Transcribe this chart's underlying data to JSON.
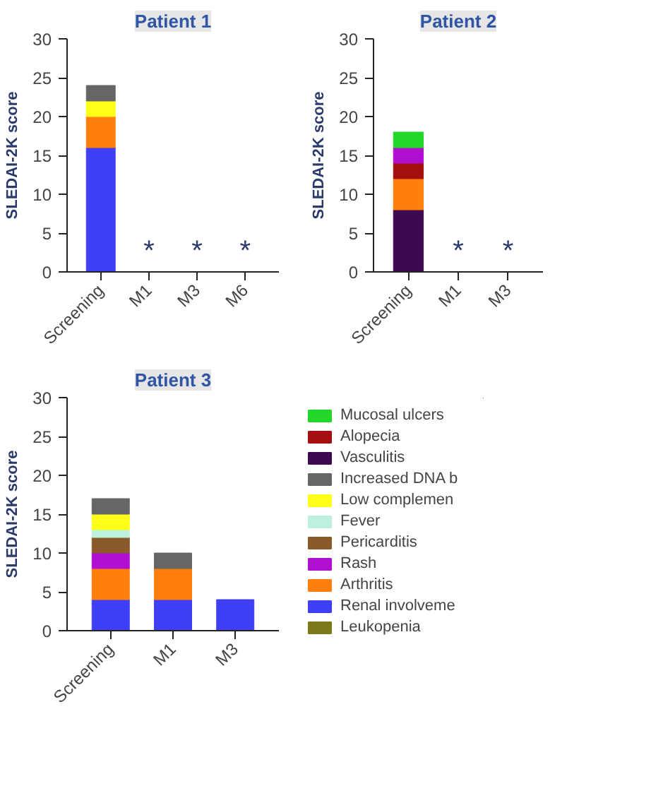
{
  "chart_data": [
    {
      "type": "bar",
      "title": "Patient 1",
      "ylabel": "SLEDAI-2K score",
      "stacked": true,
      "categories": [
        "Screening",
        "M1",
        "M3",
        "M6"
      ],
      "ylim": [
        0,
        30
      ],
      "yticks": [
        0,
        5,
        10,
        15,
        20,
        25,
        30
      ],
      "grid": false,
      "legend": false,
      "series": [
        {
          "color": "#3f3ff5",
          "values": [
            16,
            null,
            null,
            null
          ]
        },
        {
          "color": "#ff7f0e",
          "values": [
            4,
            null,
            null,
            null
          ]
        },
        {
          "color": "#ffff1a",
          "values": [
            2,
            null,
            null,
            null
          ]
        },
        {
          "color": "#666666",
          "values": [
            2,
            null,
            null,
            null
          ]
        }
      ],
      "annotations": [
        "*",
        "*",
        "*"
      ]
    },
    {
      "type": "bar",
      "title": "Patient 2",
      "ylabel": "SLEDAI-2K score",
      "stacked": true,
      "categories": [
        "Screening",
        "M1",
        "M3"
      ],
      "ylim": [
        0,
        30
      ],
      "yticks": [
        0,
        5,
        10,
        15,
        20,
        25,
        30
      ],
      "grid": false,
      "legend": false,
      "series": [
        {
          "color": "#3d0a4f",
          "values": [
            8,
            null,
            null
          ]
        },
        {
          "color": "#ff7f0e",
          "values": [
            4,
            null,
            null
          ]
        },
        {
          "color": "#a50f0f",
          "values": [
            2,
            null,
            null
          ]
        },
        {
          "color": "#b10fd0",
          "values": [
            2,
            null,
            null
          ]
        },
        {
          "color": "#22d62a",
          "values": [
            2,
            null,
            null
          ]
        }
      ],
      "annotations": [
        "*",
        "*"
      ]
    },
    {
      "type": "bar",
      "title": "Patient 3",
      "ylabel": "SLEDAI-2K score",
      "stacked": true,
      "categories": [
        "Screening",
        "M1",
        "M3"
      ],
      "ylim": [
        0,
        30
      ],
      "yticks": [
        0,
        5,
        10,
        15,
        20,
        25,
        30
      ],
      "grid": false,
      "legend": "right",
      "series": [
        {
          "name": "Leukopenia",
          "color": "#7a7a1a",
          "values": [
            null,
            null,
            null
          ]
        },
        {
          "name": "Renal involveme",
          "color": "#3f3ff5",
          "values": [
            4,
            4,
            4
          ]
        },
        {
          "name": "Arthritis",
          "color": "#ff7f0e",
          "values": [
            4,
            4,
            null
          ]
        },
        {
          "name": "Rash",
          "color": "#b10fd0",
          "values": [
            2,
            null,
            null
          ]
        },
        {
          "name": "Pericarditis",
          "color": "#8b5a2b",
          "values": [
            2,
            null,
            null
          ]
        },
        {
          "name": "Fever",
          "color": "#bdf0e0",
          "values": [
            1,
            null,
            null
          ]
        },
        {
          "name": "Low complemen",
          "color": "#ffff1a",
          "values": [
            2,
            null,
            null
          ]
        },
        {
          "name": "Increased DNA b",
          "color": "#666666",
          "values": [
            2,
            2,
            null
          ]
        },
        {
          "name": "Vasculitis",
          "color": "#3d0a4f",
          "values": [
            null,
            null,
            null
          ]
        },
        {
          "name": "Alopecia",
          "color": "#a50f0f",
          "values": [
            null,
            null,
            null
          ]
        },
        {
          "name": "Mucosal ulcers",
          "color": "#22d62a",
          "values": [
            null,
            null,
            null
          ]
        }
      ]
    }
  ]
}
